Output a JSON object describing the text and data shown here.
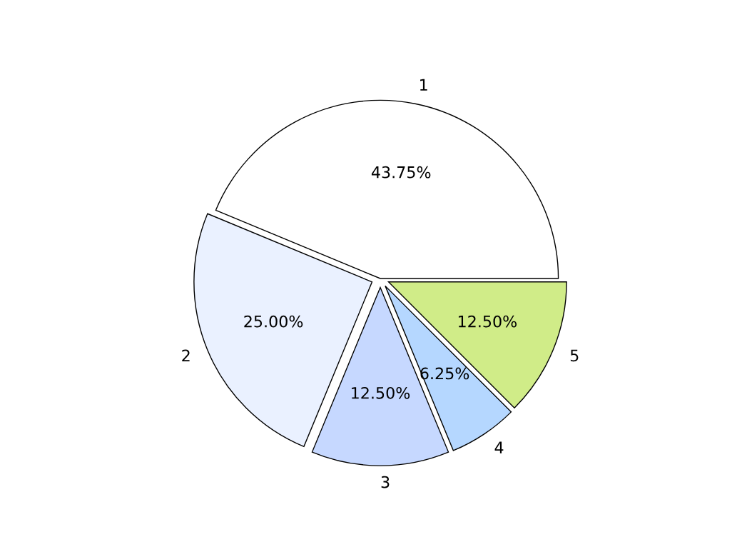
{
  "chart_data": {
    "type": "pie",
    "categories": [
      "1",
      "2",
      "3",
      "4",
      "5"
    ],
    "values": [
      43.75,
      25.0,
      12.5,
      6.25,
      12.5
    ],
    "value_labels": [
      "43.75%",
      "25.00%",
      "12.50%",
      "6.25%",
      "12.50%"
    ],
    "colors": [
      "#ffffff",
      "#eaf1ff",
      "#c6d8ff",
      "#b5d7ff",
      "#d0ec88"
    ]
  }
}
